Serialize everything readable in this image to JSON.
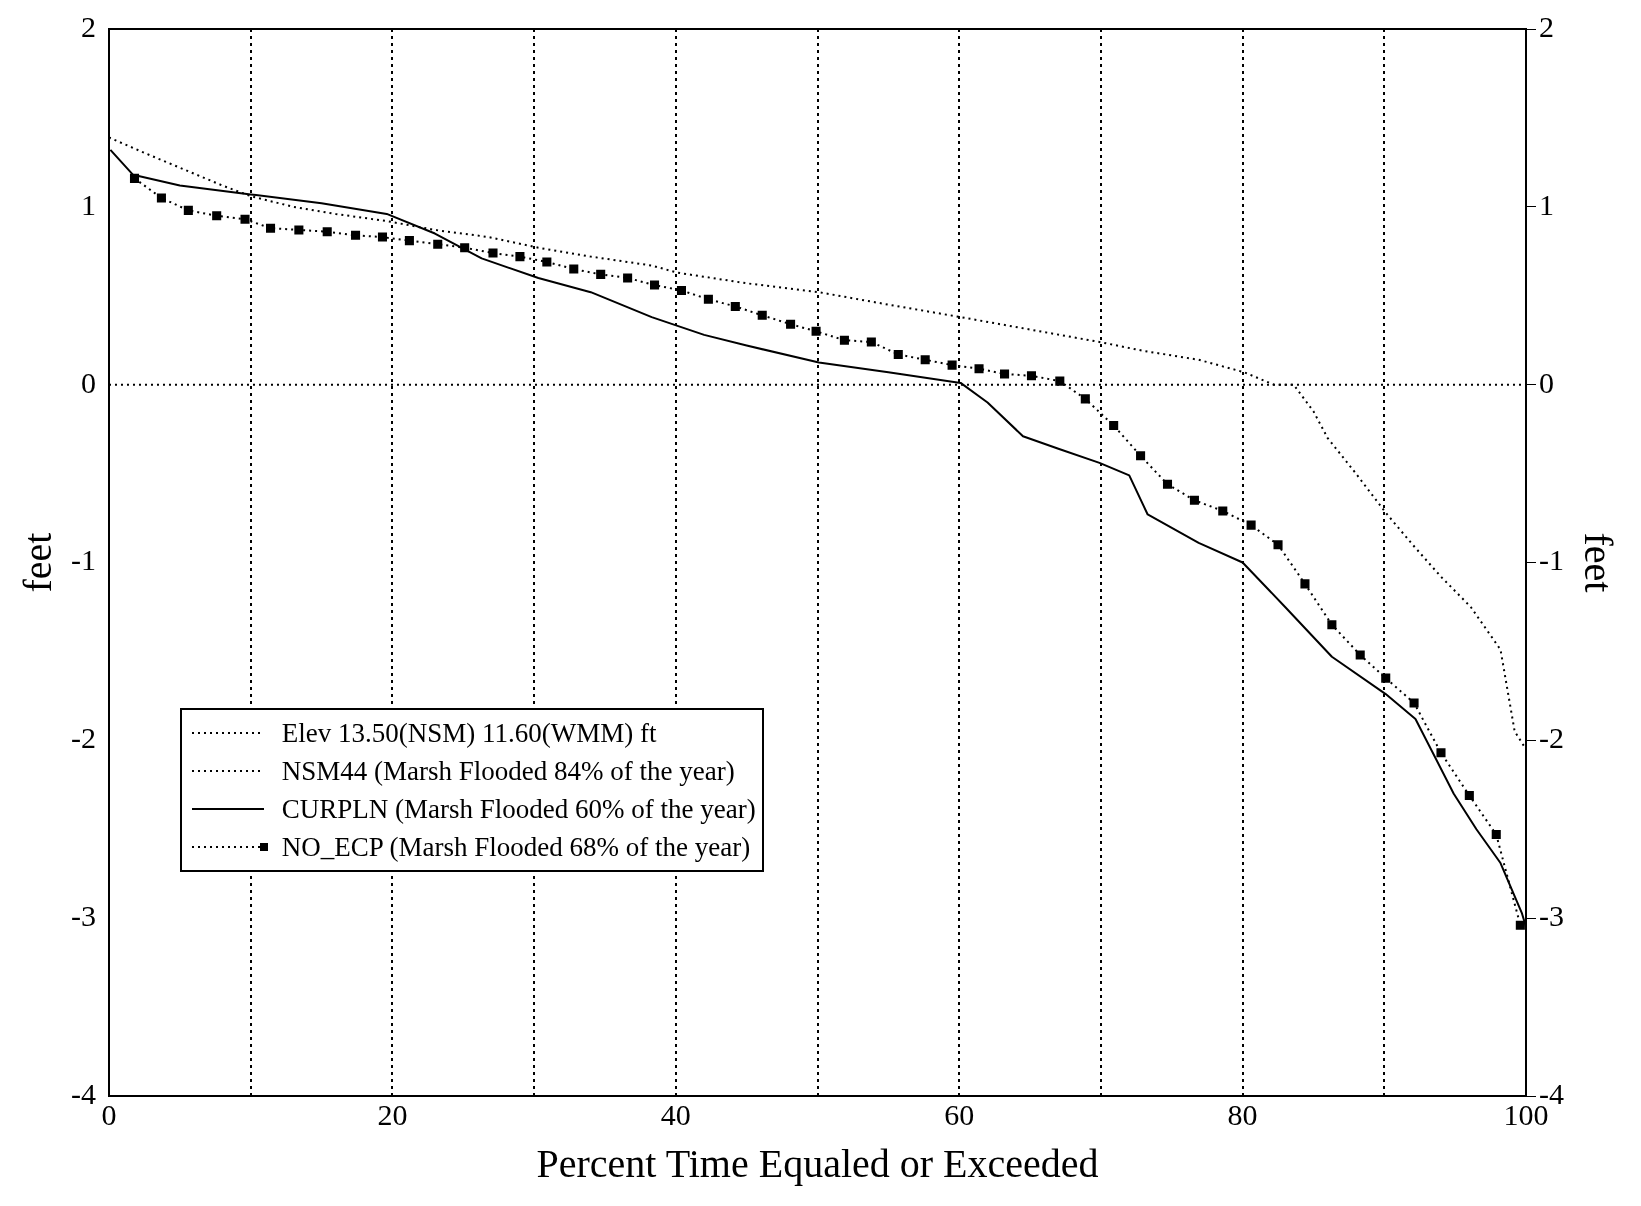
{
  "chart_data": {
    "type": "line",
    "xlabel": "Percent Time Equaled or Exceeded",
    "ylabel": "feet",
    "y2label": "feet",
    "xlim": [
      0,
      100
    ],
    "xticks": [
      0,
      {
        "value": 10,
        "label": null
      },
      20,
      {
        "value": 30,
        "label": null
      },
      40,
      {
        "value": 50,
        "label": null
      },
      60,
      {
        "value": 70,
        "label": null
      },
      80,
      {
        "value": 90,
        "label": null
      },
      100
    ],
    "ylim": [
      -4,
      2
    ],
    "yticks": [
      -4,
      -3,
      -2,
      -1,
      0,
      1,
      2
    ],
    "y2lim": [
      -4,
      2
    ],
    "y2ticks": [
      -4,
      -3,
      -2,
      -1,
      0,
      1,
      2
    ],
    "grid": "x",
    "legend": "bottom left",
    "marker": "none",
    "series": [
      {
        "name": "Elev 13.50(NSM) 11.60(WMM) ft",
        "color": "#000000",
        "line_style": "dotted",
        "x": [
          0,
          100
        ],
        "values": [
          0,
          0
        ]
      },
      {
        "name": "NSM44 (Marsh Flooded 84% of the year)",
        "color": "#000000",
        "line_style": "dotted",
        "x": [
          0,
          2.6,
          5,
          8,
          10,
          13,
          16,
          19.6,
          23,
          26.8,
          30.3,
          34,
          38.3,
          40.1,
          45,
          50.1,
          55,
          60.1,
          65,
          69.9,
          73,
          76.9,
          80.1,
          82.2,
          83.6,
          85,
          86,
          88,
          90.1,
          92,
          94,
          96.1,
          98.2,
          99.2,
          100
        ],
        "values": [
          1.39,
          1.3,
          1.22,
          1.12,
          1.06,
          1.0,
          0.96,
          0.92,
          0.87,
          0.83,
          0.77,
          0.72,
          0.67,
          0.63,
          0.57,
          0.52,
          0.45,
          0.38,
          0.31,
          0.24,
          0.19,
          0.14,
          0.07,
          0,
          0,
          -0.15,
          -0.3,
          -0.5,
          -0.72,
          -0.9,
          -1.08,
          -1.25,
          -1.49,
          -1.95,
          -2.05
        ]
      },
      {
        "name": "CURPLN (Marsh Flooded 60% of the year)",
        "color": "#000000",
        "line_style": "solid",
        "x": [
          0.1,
          1.7,
          5,
          10,
          15,
          19.6,
          23,
          26.3,
          30.3,
          34,
          38.3,
          42,
          45,
          50.1,
          55,
          60.1,
          62,
          64.5,
          67,
          69.9,
          72,
          73.3,
          76.9,
          80,
          83,
          86.3,
          90.1,
          92.2,
          94.9,
          96.5,
          98.2,
          99.7,
          100
        ],
        "values": [
          1.32,
          1.18,
          1.12,
          1.07,
          1.02,
          0.96,
          0.85,
          0.71,
          0.6,
          0.52,
          0.38,
          0.28,
          0.22,
          0.125,
          0.07,
          0.01,
          -0.1,
          -0.29,
          -0.36,
          -0.44,
          -0.51,
          -0.73,
          -0.89,
          -1.0,
          -1.25,
          -1.53,
          -1.74,
          -1.88,
          -2.3,
          -2.5,
          -2.69,
          -2.97,
          -3.05
        ]
      },
      {
        "name": "NO_ECP (Marsh Flooded 68% of the year)",
        "color": "#000000",
        "line_style": "dotted",
        "marker": "square",
        "x": [
          1.8,
          3.7,
          5.6,
          7.6,
          9.6,
          11.4,
          13.4,
          15.4,
          17.4,
          19.3,
          21.2,
          23.2,
          25.1,
          27.1,
          29,
          30.9,
          32.8,
          34.7,
          36.6,
          38.5,
          40.4,
          42.3,
          44.2,
          46.1,
          48.1,
          49.9,
          51.9,
          53.8,
          55.7,
          57.6,
          59.5,
          61.4,
          63.2,
          65.1,
          67.1,
          68.9,
          70.9,
          72.8,
          74.7,
          76.6,
          78.6,
          80.6,
          82.5,
          84.4,
          86.3,
          88.3,
          90.1,
          92.1,
          94,
          96,
          97.9,
          99.6
        ],
        "values": [
          1.16,
          1.05,
          0.98,
          0.95,
          0.93,
          0.88,
          0.87,
          0.86,
          0.84,
          0.83,
          0.81,
          0.79,
          0.77,
          0.74,
          0.72,
          0.69,
          0.65,
          0.62,
          0.6,
          0.56,
          0.53,
          0.48,
          0.44,
          0.39,
          0.34,
          0.3,
          0.25,
          0.24,
          0.17,
          0.14,
          0.11,
          0.09,
          0.06,
          0.05,
          0.02,
          -0.08,
          -0.23,
          -0.4,
          -0.56,
          -0.65,
          -0.71,
          -0.79,
          -0.9,
          -1.12,
          -1.35,
          -1.52,
          -1.65,
          -1.79,
          -2.07,
          -2.31,
          -2.53,
          -3.04
        ]
      }
    ]
  }
}
